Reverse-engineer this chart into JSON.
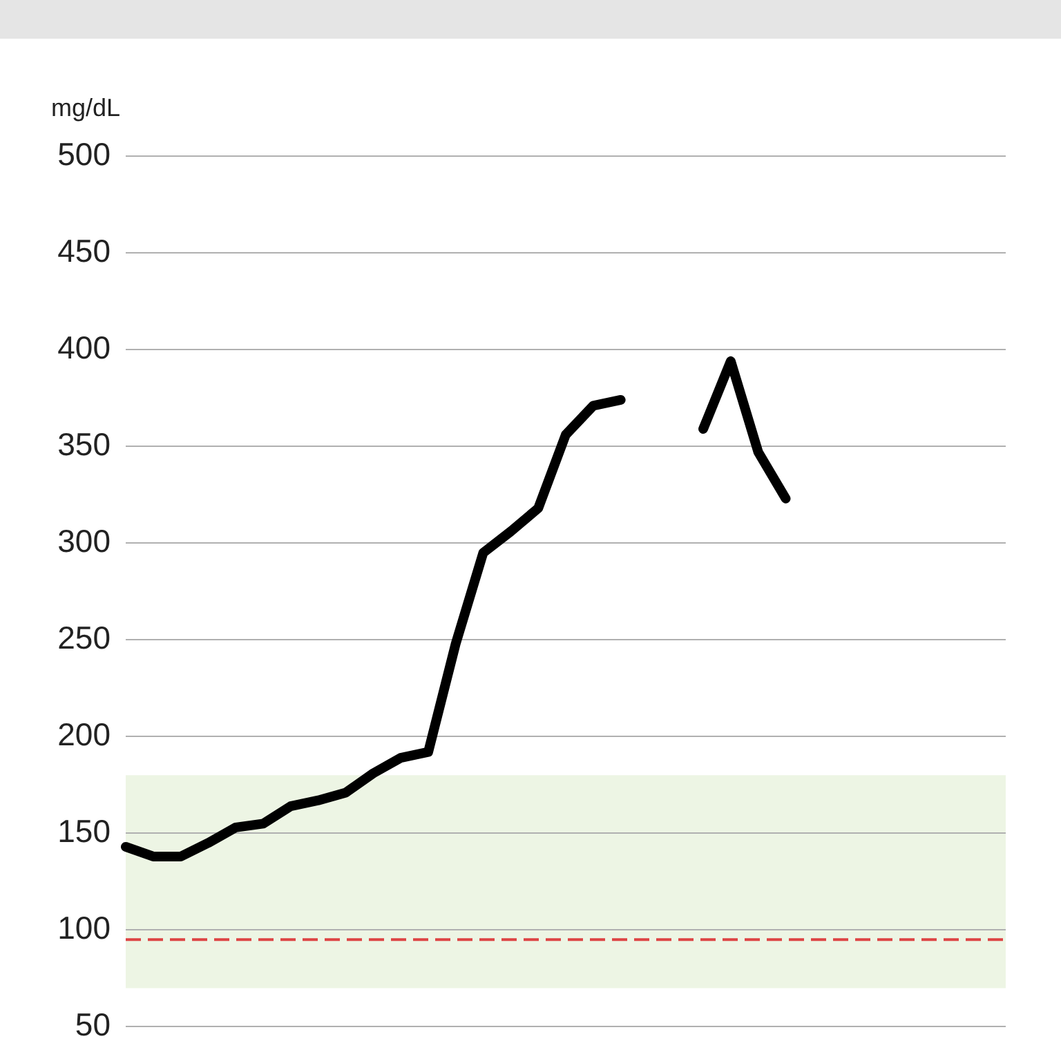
{
  "chart_data": {
    "type": "line",
    "ylabel": "mg/dL",
    "categories": [
      null,
      null,
      null,
      null,
      null,
      null,
      null,
      null,
      null,
      null,
      null,
      null,
      null,
      null,
      null,
      null,
      null,
      null,
      null,
      null,
      null,
      null,
      null,
      null,
      null,
      null,
      null,
      null,
      null,
      null,
      null,
      null,
      null
    ],
    "series": [
      {
        "color": "#000000",
        "values": [
          143,
          138,
          138,
          145,
          153,
          155,
          164,
          167,
          171,
          181,
          189,
          192,
          248,
          295,
          306,
          318,
          356,
          371,
          374,
          null,
          null,
          null,
          null,
          null,
          null,
          null,
          null,
          null,
          null,
          null,
          null,
          null,
          null
        ]
      },
      {
        "color": "#000000",
        "values": [
          null,
          null,
          null,
          null,
          null,
          null,
          null,
          null,
          null,
          null,
          null,
          null,
          null,
          null,
          null,
          null,
          null,
          null,
          null,
          null,
          null,
          359,
          394,
          347,
          323,
          null,
          null,
          null,
          null,
          null,
          null,
          null,
          null
        ]
      }
    ],
    "ylim": [
      50,
      500
    ],
    "yticks": [
      50,
      100,
      150,
      200,
      250,
      300,
      350,
      400,
      450,
      500
    ],
    "grid": "y",
    "legend": false,
    "tick_labels": "y",
    "marker": "none",
    "line_style": "solid",
    "bands": [
      {
        "axis": "y",
        "from": 70,
        "to": 180,
        "color": "#edf5e4"
      }
    ],
    "ref_lines": [
      {
        "axis": "y",
        "value": 95,
        "color": "#dd4444",
        "line_style": "dashed"
      }
    ]
  }
}
